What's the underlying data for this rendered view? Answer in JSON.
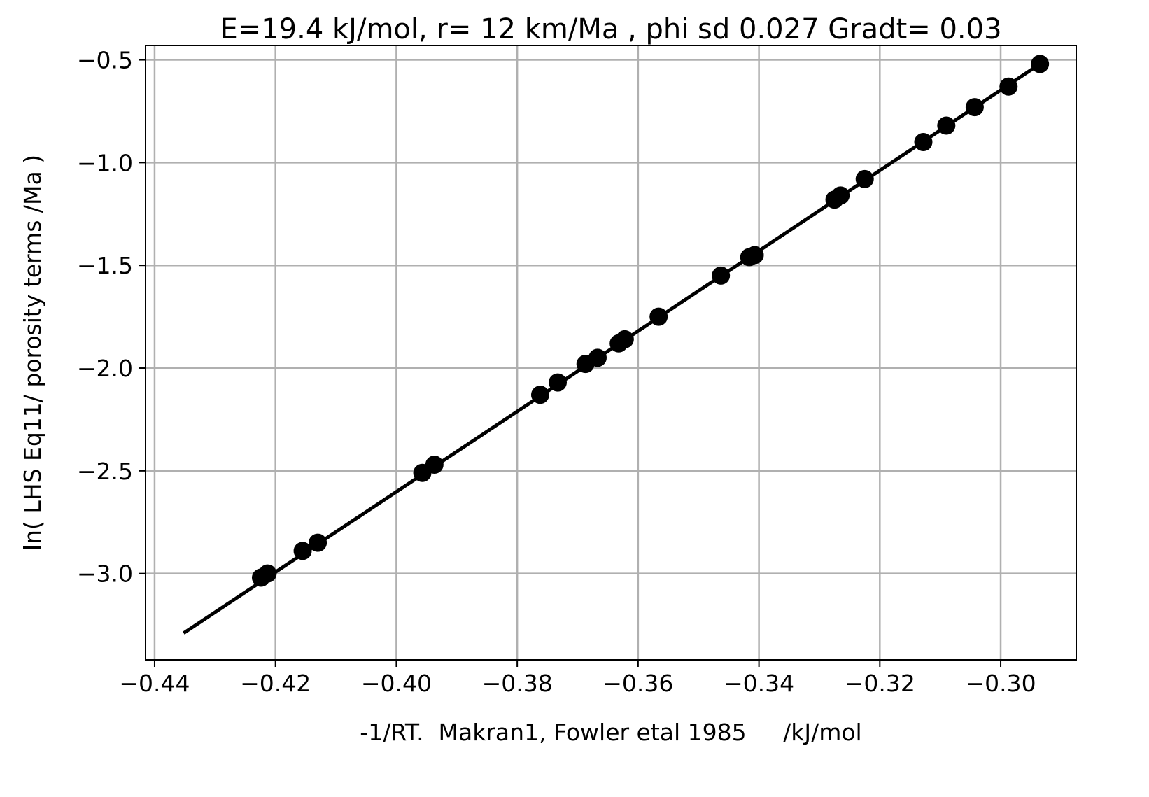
{
  "chart_data": {
    "type": "scatter",
    "title": "E=19.4 kJ/mol, r= 12 km/Ma , phi sd 0.027 Gradt= 0.03",
    "xlabel": "-1/RT.  Makran1, Fowler etal 1985     /kJ/mol",
    "ylabel": "ln( LHS Eq11/ porosity terms /Ma )",
    "xlim": [
      -0.4415,
      -0.2875
    ],
    "ylim": [
      -3.42,
      -0.43
    ],
    "grid": true,
    "x_ticks": [
      -0.44,
      -0.42,
      -0.4,
      -0.38,
      -0.36,
      -0.34,
      -0.32,
      -0.3
    ],
    "x_tick_labels": [
      "−0.44",
      "−0.42",
      "−0.40",
      "−0.38",
      "−0.36",
      "−0.34",
      "−0.32",
      "−0.30"
    ],
    "y_ticks": [
      -0.5,
      -1.0,
      -1.5,
      -2.0,
      -2.5,
      -3.0
    ],
    "y_tick_labels": [
      "−0.5",
      "−1.0",
      "−1.5",
      "−2.0",
      "−2.5",
      "−3.0"
    ],
    "series": [
      {
        "kind": "points",
        "color": "#000000",
        "x": [
          -0.4224,
          -0.4213,
          -0.4155,
          -0.413,
          -0.3957,
          -0.3937,
          -0.3762,
          -0.3733,
          -0.3687,
          -0.3667,
          -0.3632,
          -0.3622,
          -0.3566,
          -0.3463,
          -0.3416,
          -0.3407,
          -0.3275,
          -0.3265,
          -0.3225,
          -0.3128,
          -0.309,
          -0.3043,
          -0.2987,
          -0.2935
        ],
        "y": [
          -3.02,
          -3.0,
          -2.89,
          -2.85,
          -2.51,
          -2.47,
          -2.13,
          -2.07,
          -1.98,
          -1.95,
          -1.88,
          -1.86,
          -1.75,
          -1.55,
          -1.46,
          -1.45,
          -1.18,
          -1.16,
          -1.08,
          -0.9,
          -0.82,
          -0.73,
          -0.63,
          -0.52
        ]
      },
      {
        "kind": "line",
        "color": "#000000",
        "x": [
          -0.4352,
          -0.2935
        ],
        "y": [
          -3.29,
          -0.52
        ]
      }
    ],
    "colors": {
      "grid": "#b0b0b0",
      "axes": "#000000",
      "background": "#ffffff"
    }
  }
}
